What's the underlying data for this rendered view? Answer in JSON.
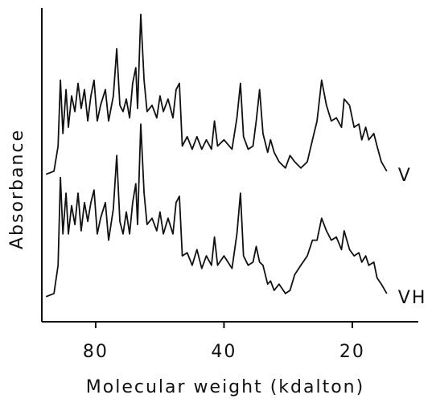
{
  "chart_data": {
    "type": "line",
    "x_label": "Molecular weight (kdalton)",
    "y_label": "Absorbance",
    "xscale": "log",
    "xlim": [
      107,
      14
    ],
    "xticks": [
      80,
      40,
      20
    ],
    "ylim": [
      0,
      100
    ],
    "grid": false,
    "x": [
      104.6,
      100.2,
      98.0,
      96.8,
      95.5,
      93.9,
      92.7,
      91.1,
      89.5,
      88.0,
      86.5,
      85.0,
      83.5,
      82.1,
      80.7,
      79.3,
      77.9,
      75.9,
      74.6,
      72.7,
      71.4,
      70.2,
      69.0,
      67.8,
      66.6,
      65.5,
      64.4,
      63.8,
      62.7,
      61.6,
      60.6,
      59.0,
      57.5,
      56.5,
      55.5,
      54.1,
      52.7,
      51.8,
      50.9,
      50.1,
      48.8,
      47.5,
      46.3,
      45.1,
      44.0,
      42.8,
      42.1,
      41.4,
      40.0,
      38.3,
      37.3,
      36.6,
      36.0,
      35.1,
      34.2,
      33.6,
      33.0,
      32.4,
      31.6,
      31.1,
      30.5,
      29.7,
      28.7,
      28.0,
      27.3,
      26.4,
      25.5,
      24.8,
      24.2,
      23.6,
      23.0,
      22.4,
      21.8,
      21.2,
      20.9,
      20.3,
      19.8,
      19.3,
      19.0,
      18.6,
      18.3,
      17.8,
      17.5,
      17.1,
      16.6
    ],
    "series": [
      {
        "name": "V",
        "color": "#111111",
        "values": [
          47,
          48,
          56,
          77,
          60,
          74,
          62,
          72,
          67,
          76,
          68,
          74,
          64,
          72,
          77,
          64,
          69,
          74,
          64,
          72,
          87,
          69,
          67,
          71,
          65,
          76,
          81,
          68,
          98,
          77,
          67,
          69,
          65,
          72,
          67,
          71,
          65,
          74,
          76,
          56,
          59,
          55,
          59,
          55,
          58,
          55,
          64,
          56,
          58,
          55,
          65,
          76,
          59,
          55,
          56,
          64,
          74,
          60,
          54,
          58,
          54,
          51,
          49,
          53,
          51,
          49,
          51,
          58,
          64,
          77,
          69,
          64,
          65,
          62,
          71,
          69,
          62,
          63,
          58,
          62,
          58,
          60,
          56,
          51,
          48
        ]
      },
      {
        "name": "VH",
        "color": "#111111",
        "values": [
          8,
          9,
          18,
          46,
          28,
          41,
          28,
          37,
          31,
          41,
          29,
          38,
          32,
          38,
          42,
          28,
          33,
          38,
          26,
          36,
          53,
          32,
          28,
          35,
          28,
          38,
          44,
          31,
          63,
          41,
          31,
          33,
          29,
          35,
          28,
          33,
          28,
          38,
          40,
          21,
          22,
          18,
          23,
          17,
          21,
          18,
          27,
          18,
          21,
          17,
          28,
          41,
          21,
          18,
          19,
          24,
          19,
          18,
          12,
          13,
          10,
          12,
          9,
          10,
          15,
          18,
          21,
          26,
          26,
          33,
          29,
          26,
          27,
          23,
          29,
          23,
          21,
          22,
          19,
          21,
          18,
          19,
          14,
          12,
          9
        ]
      }
    ]
  }
}
